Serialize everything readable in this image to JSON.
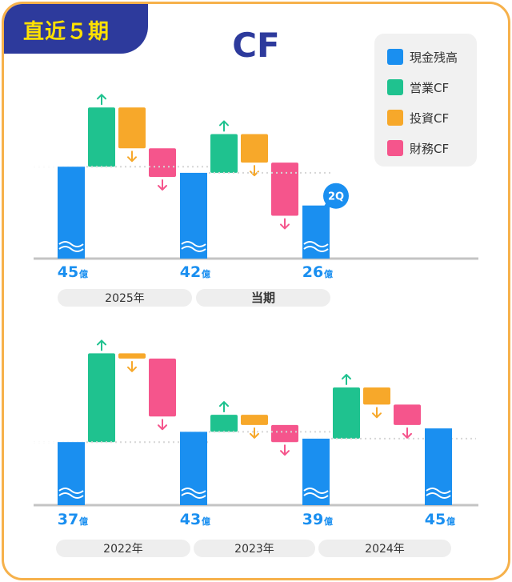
{
  "badge": "直近５期",
  "title": "CF",
  "colors": {
    "cash": "#1a8ff0",
    "operating": "#1fc28f",
    "investing": "#f7a82a",
    "financing": "#f5558c",
    "value_text": "#1a8ff0",
    "axis": "#c4c4c4",
    "pill": "#eeeeee"
  },
  "legend": [
    {
      "label": "現金残高",
      "color": "#1a8ff0"
    },
    {
      "label": "営業CF",
      "color": "#1fc28f"
    },
    {
      "label": "投資CF",
      "color": "#f7a82a"
    },
    {
      "label": "財務CF",
      "color": "#f5558c"
    }
  ],
  "chart_data": [
    {
      "type": "bar",
      "periods": [
        {
          "label": "2025年",
          "cash_start": 45,
          "operating": 29,
          "investing": -20,
          "financing": -14,
          "cash_end": 42
        },
        {
          "label": "当期",
          "cash_start": 42,
          "operating": 19,
          "investing": -14,
          "financing": -26,
          "cash_end": 26,
          "tag": "2Q"
        }
      ],
      "value_labels": [
        "45",
        "42",
        "26"
      ],
      "unit": "億"
    },
    {
      "type": "bar",
      "periods": [
        {
          "label": "2022年",
          "cash_start": 37,
          "operating": 52,
          "investing": -3,
          "financing": -34,
          "cash_end": 43
        },
        {
          "label": "2023年",
          "cash_start": 43,
          "operating": 10,
          "investing": -6,
          "financing": -10,
          "cash_end": 39
        },
        {
          "label": "2024年",
          "cash_start": 39,
          "operating": 30,
          "investing": -10,
          "financing": -12,
          "cash_end": 45
        }
      ],
      "value_labels": [
        "37",
        "43",
        "39",
        "45"
      ],
      "unit": "億"
    }
  ]
}
